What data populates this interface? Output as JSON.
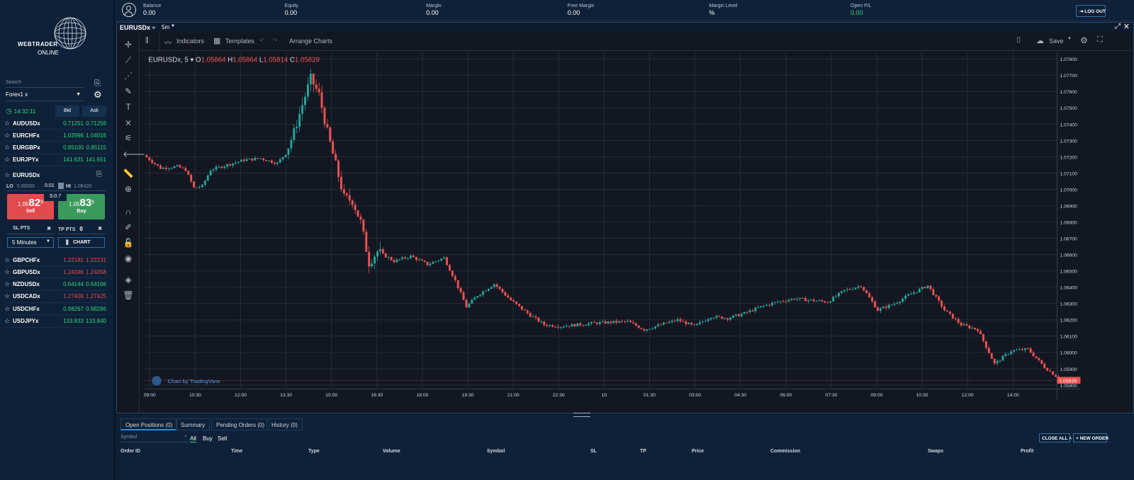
{
  "brand": {
    "line1": "WEBTRADER",
    "line2": "ONLINE"
  },
  "sidebar": {
    "search_placeholder": "Search",
    "group": "Forex1 x",
    "time": "14:32:11",
    "bid_label": "Bid",
    "ask_label": "Ask",
    "symbols_top": [
      {
        "name": "AUDUSDx",
        "bid": "0.71251",
        "ask": "0.71259",
        "color": "#2ed47a"
      },
      {
        "name": "EURCHFx",
        "bid": "1.03996",
        "ask": "1.04016",
        "color": "#2ed47a"
      },
      {
        "name": "EURGBPx",
        "bid": "0.85100",
        "ask": "0.85115",
        "color": "#2ed47a"
      },
      {
        "name": "EURJPYx",
        "bid": "141.631",
        "ask": "141.651",
        "color": "#2ed47a"
      }
    ],
    "active": {
      "name": "EURUSDx",
      "lo_label": "LO",
      "lo_value": "0.00000",
      "lot": "0.01",
      "hi_label": "HI",
      "hi_value": "1.06420",
      "spread": "S:0.7",
      "sell_pre": "1.05",
      "sell_big": "82",
      "sell_sup": "9",
      "sell_label": "Sell",
      "buy_pre": "1.05",
      "buy_big": "83",
      "buy_sup": "6",
      "buy_label": "Buy",
      "sl_label": "SL PTS",
      "tp_label": "TP PTS",
      "tp_value": "0",
      "interval": "5 Minutes",
      "chart_label": "CHART"
    },
    "symbols_bottom": [
      {
        "name": "GBPCHFx",
        "bid": "1.22181",
        "ask": "1.22231",
        "color": "#f04a4a"
      },
      {
        "name": "GBPUSDx",
        "bid": "1.24346",
        "ask": "1.24358",
        "color": "#f04a4a"
      },
      {
        "name": "NZDUSDx",
        "bid": "0.64144",
        "ask": "0.64166",
        "color": "#2ed47a"
      },
      {
        "name": "USDCADx",
        "bid": "1.27409",
        "ask": "1.27425",
        "color": "#f04a4a"
      },
      {
        "name": "USDCHFx",
        "bid": "0.98267",
        "ask": "0.98286",
        "color": "#2ed47a"
      },
      {
        "name": "USDJPYx",
        "bid": "133.833",
        "ask": "133.840",
        "color": "#2ed47a"
      }
    ]
  },
  "account": [
    {
      "label": "Balance",
      "value": "0.00"
    },
    {
      "label": "Equity",
      "value": "0.00"
    },
    {
      "label": "Margin",
      "value": "0.00"
    },
    {
      "label": "Free Margin",
      "value": "0.00"
    },
    {
      "label": "Margin Level",
      "value": "%"
    },
    {
      "label": "Open P/L",
      "value": "0.00"
    }
  ],
  "logout": "LOG OUT",
  "chart_window": {
    "symbol": "EURUSDx",
    "timeframe": "5m"
  },
  "chart_toolbar": {
    "indicators": "Indicators",
    "templates": "Templates",
    "arrange": "Arrange Charts",
    "save": "Save"
  },
  "legend": {
    "symbol": "EURUSDx, 5",
    "o_label": "O",
    "o": "1.05864",
    "h_label": "H",
    "h": "1.05864",
    "l_label": "L",
    "l": "1.05814",
    "c_label": "C",
    "c": "1.05829"
  },
  "watermark": "Chart by TradingView",
  "last_price": "1.05829",
  "chart_data": {
    "type": "candlestick",
    "y_ticks": [
      "1.07800",
      "1.07700",
      "1.07600",
      "1.07500",
      "1.07400",
      "1.07300",
      "1.07200",
      "1.07100",
      "1.07000",
      "1.06900",
      "1.06800",
      "1.06700",
      "1.06600",
      "1.06500",
      "1.06400",
      "1.06300",
      "1.06200",
      "1.06100",
      "1.06000",
      "1.05900",
      "1.05800"
    ],
    "x_ticks": [
      "09:00",
      "10:30",
      "12:00",
      "13:30",
      "15:00",
      "16:30",
      "18:00",
      "19:30",
      "21:00",
      "22:30",
      "10",
      "01:30",
      "03:00",
      "04:30",
      "06:00",
      "07:30",
      "09:00",
      "10:30",
      "12:00",
      "14:00"
    ],
    "ylim": [
      1.0578,
      1.0784
    ],
    "trend": [
      [
        0,
        1.0721
      ],
      [
        6,
        1.0713
      ],
      [
        12,
        1.0714
      ],
      [
        15,
        1.0712
      ],
      [
        18,
        1.0701
      ],
      [
        21,
        1.0702
      ],
      [
        24,
        1.0712
      ],
      [
        30,
        1.0715
      ],
      [
        36,
        1.0718
      ],
      [
        42,
        1.0719
      ],
      [
        48,
        1.0716
      ],
      [
        51,
        1.0722
      ],
      [
        54,
        1.0735
      ],
      [
        57,
        1.0752
      ],
      [
        60,
        1.0768
      ],
      [
        63,
        1.0758
      ],
      [
        66,
        1.0735
      ],
      [
        69,
        1.0715
      ],
      [
        72,
        1.0695
      ],
      [
        75,
        1.0693
      ],
      [
        78,
        1.068
      ],
      [
        81,
        1.0655
      ],
      [
        84,
        1.0662
      ],
      [
        90,
        1.0656
      ],
      [
        96,
        1.0659
      ],
      [
        102,
        1.0654
      ],
      [
        108,
        1.0658
      ],
      [
        112,
        1.0644
      ],
      [
        116,
        1.0628
      ],
      [
        120,
        1.0635
      ],
      [
        126,
        1.0642
      ],
      [
        132,
        1.0632
      ],
      [
        138,
        1.0624
      ],
      [
        144,
        1.0617
      ],
      [
        150,
        1.0616
      ],
      [
        162,
        1.0618
      ],
      [
        174,
        1.0619
      ],
      [
        180,
        1.0614
      ],
      [
        186,
        1.0617
      ],
      [
        192,
        1.062
      ],
      [
        198,
        1.0616
      ],
      [
        204,
        1.0622
      ],
      [
        210,
        1.0621
      ],
      [
        216,
        1.0624
      ],
      [
        222,
        1.0628
      ],
      [
        228,
        1.0631
      ],
      [
        234,
        1.0633
      ],
      [
        240,
        1.0632
      ],
      [
        246,
        1.0631
      ],
      [
        252,
        1.0638
      ],
      [
        258,
        1.0641
      ],
      [
        264,
        1.0626
      ],
      [
        270,
        1.063
      ],
      [
        276,
        1.0636
      ],
      [
        282,
        1.0641
      ],
      [
        288,
        1.0626
      ],
      [
        294,
        1.0617
      ],
      [
        300,
        1.0614
      ],
      [
        306,
        1.0593
      ],
      [
        312,
        1.0601
      ],
      [
        318,
        1.0602
      ],
      [
        324,
        1.0591
      ],
      [
        330,
        1.0583
      ]
    ]
  },
  "bottom": {
    "tabs": [
      "Open Positions (0)",
      "Summary",
      "Pending Orders (0)",
      "History (0)"
    ],
    "symbol_placeholder": "Symbol",
    "filters": [
      "All",
      "Buy",
      "Sell"
    ],
    "close_all": "CLOSE ALL",
    "new_order": "NEW ORDER",
    "columns": [
      "Order ID",
      "Time",
      "Type",
      "Volume",
      "Symbol",
      "SL",
      "TP",
      "Price",
      "Commission",
      "Swaps",
      "Profit"
    ]
  }
}
